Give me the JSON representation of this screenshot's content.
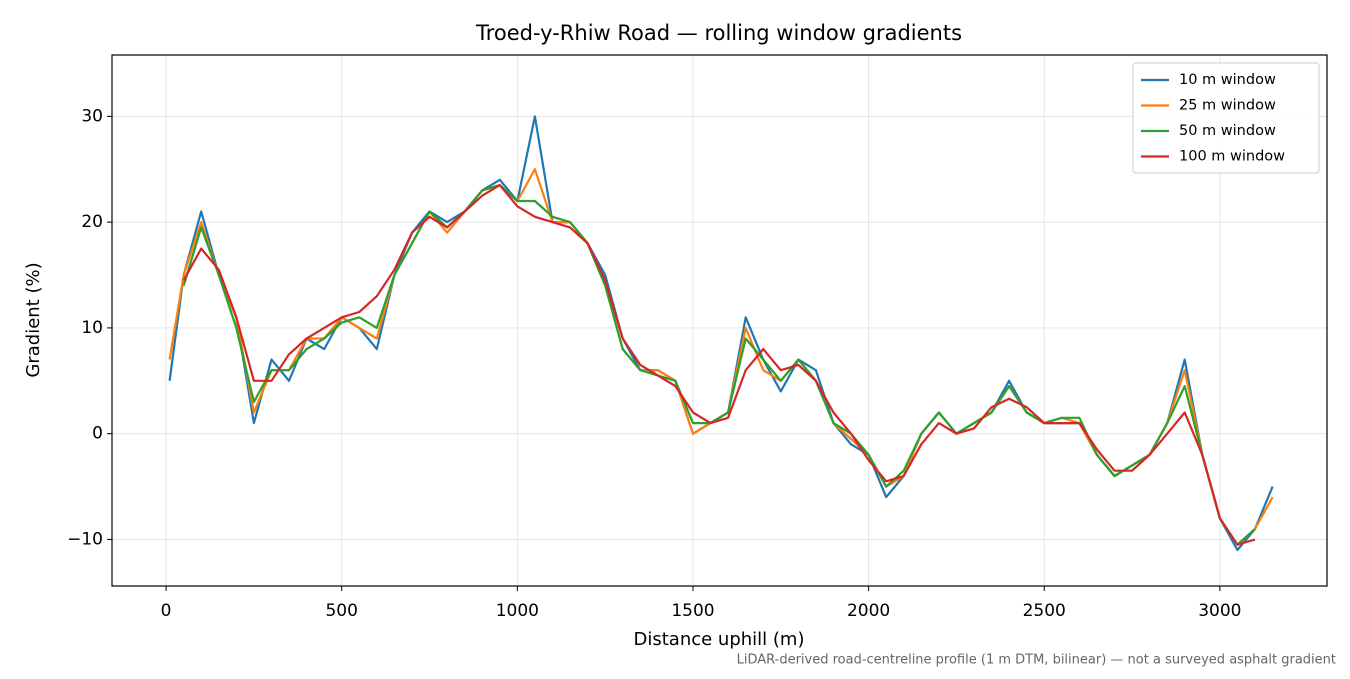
{
  "chart_data": {
    "type": "line",
    "title": "Troed-y-Rhiw Road — rolling window gradients",
    "x_label": "Distance uphill (m)",
    "y_label": "Gradient (%)",
    "footnote": "LiDAR-derived road-centreline profile (1 m DTM, bilinear) — not a surveyed asphalt gradient",
    "x": [
      10,
      50,
      100,
      150,
      200,
      250,
      300,
      350,
      400,
      450,
      500,
      550,
      600,
      650,
      700,
      750,
      800,
      850,
      900,
      950,
      1000,
      1050,
      1100,
      1150,
      1200,
      1250,
      1300,
      1350,
      1400,
      1450,
      1500,
      1550,
      1600,
      1650,
      1700,
      1750,
      1800,
      1850,
      1900,
      1950,
      2000,
      2050,
      2100,
      2150,
      2200,
      2250,
      2300,
      2350,
      2400,
      2450,
      2500,
      2550,
      2600,
      2650,
      2700,
      2750,
      2800,
      2850,
      2900,
      2950,
      3000,
      3050,
      3100,
      3150
    ],
    "series": [
      {
        "name": "10 m window",
        "color": "#1f77b4",
        "values": [
          5,
          15,
          21,
          15,
          11,
          1,
          7,
          5,
          9,
          8,
          11,
          10,
          8,
          15,
          19,
          21,
          20,
          21,
          23,
          24,
          22,
          30,
          20,
          20,
          18,
          15,
          9,
          6,
          6,
          5,
          0,
          1,
          2,
          11,
          7,
          4,
          7,
          6,
          1,
          -1,
          -2,
          -6,
          -4,
          0,
          2,
          0,
          1,
          2,
          5,
          2,
          1,
          1,
          1,
          -2,
          -4,
          -3,
          -2,
          1,
          7,
          -2,
          -8,
          -11,
          -9,
          -5
        ]
      },
      {
        "name": "25 m window",
        "color": "#ff7f0e",
        "values": [
          7,
          15,
          20,
          15,
          11,
          2,
          6,
          6,
          9,
          9,
          11,
          10,
          9,
          15,
          18,
          21,
          19,
          21,
          23,
          23.5,
          22,
          25,
          20,
          20,
          18,
          14,
          8,
          6,
          6,
          5,
          0,
          1,
          2,
          10,
          6,
          5,
          7,
          5,
          1,
          -0.5,
          -2,
          -5,
          -4,
          0,
          2,
          0,
          1,
          2,
          4.5,
          2,
          1,
          1.5,
          1,
          -2,
          -4,
          -3,
          -2,
          1,
          6,
          -2,
          -8,
          -10.5,
          -9,
          -6
        ]
      },
      {
        "name": "50 m window",
        "color": "#2ca02c",
        "values": [
          null,
          14,
          19.5,
          15,
          10,
          3,
          6,
          6,
          8,
          9,
          10.5,
          11,
          10,
          15,
          18,
          21,
          19.5,
          21,
          23,
          23.5,
          22,
          22,
          20.5,
          20,
          18,
          14,
          8,
          6,
          5.5,
          5,
          1,
          1,
          2,
          9,
          7,
          5,
          7,
          5,
          1,
          0,
          -2,
          -5,
          -3.5,
          0,
          2,
          0,
          1,
          2,
          4.5,
          2,
          1,
          1.5,
          1.5,
          -2,
          -4,
          -3,
          -2,
          1,
          4.5,
          -2,
          -8,
          -10.5,
          -9,
          null
        ]
      },
      {
        "name": "100 m window",
        "color": "#d62728",
        "values": [
          null,
          14.5,
          17.5,
          15.5,
          11,
          5,
          5,
          7.5,
          9,
          10,
          11,
          11.5,
          13,
          15.5,
          19,
          20.5,
          19.5,
          21,
          22.5,
          23.5,
          21.5,
          20.5,
          20,
          19.5,
          18,
          14.5,
          9,
          6.5,
          5.5,
          4.5,
          2,
          1,
          1.5,
          6,
          8,
          6,
          6.5,
          5,
          2,
          0,
          -2.5,
          -4.5,
          -4,
          -1,
          1,
          0,
          0.5,
          2.5,
          3.3,
          2.5,
          1,
          1,
          1,
          -1.5,
          -3.5,
          -3.5,
          -2,
          0,
          2,
          -2,
          -8,
          -10.5,
          -10,
          null
        ]
      }
    ],
    "xlim": [
      -154,
      3305
    ],
    "ylim": [
      -14.4,
      35.8
    ],
    "xticks": [
      0,
      500,
      1000,
      1500,
      2000,
      2500,
      3000
    ],
    "yticks": [
      {
        "value": -10,
        "label": "−10"
      },
      0,
      10,
      20,
      30
    ],
    "grid": true,
    "legend": "upper right"
  }
}
